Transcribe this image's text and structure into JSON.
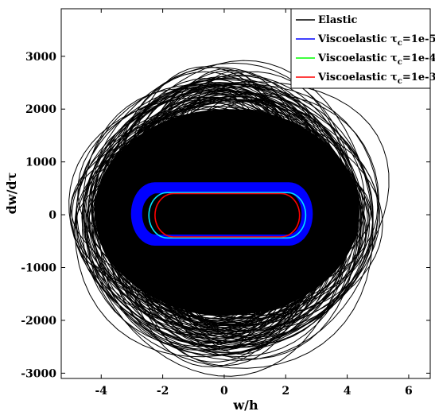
{
  "chart_data": {
    "type": "line",
    "xlabel": "w/h",
    "ylabel": "dw/dτ",
    "xlim": [
      -5.3,
      6.7
    ],
    "ylim": [
      -3100,
      3900
    ],
    "xticks": [
      -4,
      -2,
      0,
      2,
      4,
      6
    ],
    "yticks": [
      -3000,
      -2000,
      -1000,
      0,
      1000,
      2000,
      3000
    ],
    "xtick_labels": [
      "-4",
      "-2",
      "0",
      "2",
      "4",
      "6"
    ],
    "ytick_labels": [
      "-3000",
      "-2000",
      "-1000",
      "0",
      "1000",
      "2000",
      "3000"
    ],
    "grid": false,
    "legend_position": "top-right",
    "series": [
      {
        "name": "Elastic",
        "legend_text": "Elastic",
        "legend_sub": "",
        "legend_suffix": "",
        "color": "#000000"
      },
      {
        "name": "Viscoelastic τc=1e-5",
        "legend_text": "Viscoelastic τ",
        "legend_sub": "c",
        "legend_suffix": "=1e-5",
        "color": "#0000ff"
      },
      {
        "name": "Viscoelastic τc=1e-4",
        "legend_text": "Viscoelastic τ",
        "legend_sub": "c",
        "legend_suffix": "=1e-4",
        "color": "#00ff00"
      },
      {
        "name": "Viscoelastic τc=1e-3",
        "legend_text": "Viscoelastic τ",
        "legend_sub": "c",
        "legend_suffix": "=1e-3",
        "color": "#ff0000"
      }
    ],
    "limit_cycles": [
      {
        "series": "Viscoelastic τc=1e-5",
        "x_range": [
          -2.7,
          2.7
        ],
        "y_range": [
          -420,
          430
        ],
        "color": "#0000ff"
      },
      {
        "series": "Viscoelastic τc=1e-4",
        "x_range": [
          -2.45,
          2.65
        ],
        "y_range": [
          -440,
          420
        ],
        "color": "#00e5ff"
      },
      {
        "series": "Viscoelastic τc=1e-3",
        "x_range": [
          -2.25,
          2.45
        ],
        "y_range": [
          -420,
          400
        ],
        "color": "#ff0000"
      }
    ],
    "elastic_envelope": {
      "x_range": [
        -5.2,
        5.3
      ],
      "y_range": [
        -3000,
        3000
      ],
      "core_x_range": [
        -4.2,
        4.4
      ],
      "core_y_range": [
        -1900,
        2000
      ]
    }
  }
}
